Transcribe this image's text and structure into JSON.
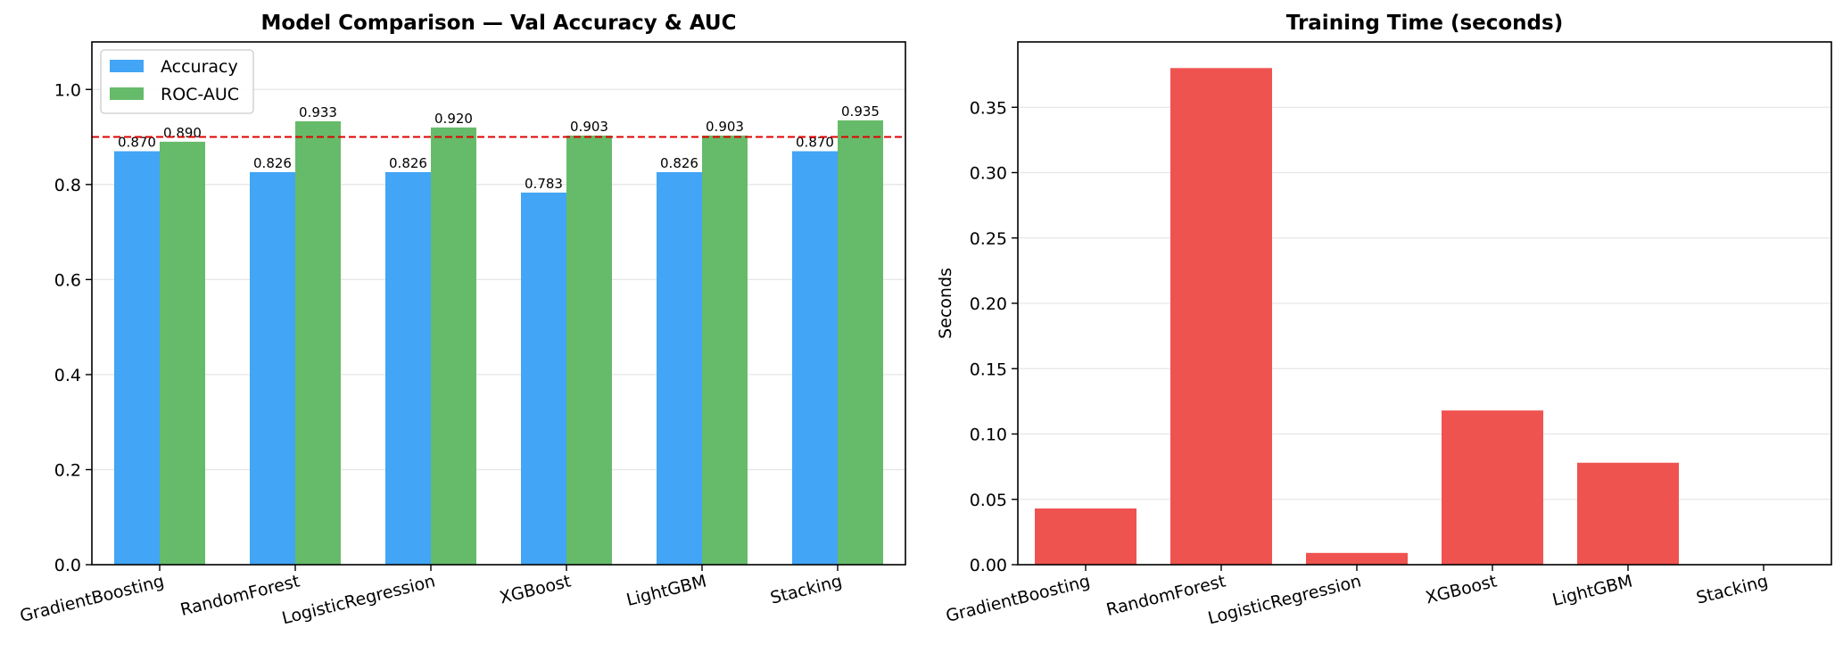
{
  "chart_data": [
    {
      "type": "bar",
      "title": "Model Comparison — Val Accuracy & AUC",
      "xlabel": "",
      "ylabel": "",
      "categories": [
        "GradientBoosting",
        "RandomForest",
        "LogisticRegression",
        "XGBoost",
        "LightGBM",
        "Stacking"
      ],
      "series": [
        {
          "name": "Accuracy",
          "color": "#42a5f5",
          "values": [
            0.87,
            0.826,
            0.826,
            0.783,
            0.826,
            0.87
          ],
          "labels": [
            "0.870",
            "0.826",
            "0.826",
            "0.783",
            "0.826",
            "0.870"
          ]
        },
        {
          "name": "ROC-AUC",
          "color": "#66bb6a",
          "values": [
            0.89,
            0.933,
            0.92,
            0.903,
            0.903,
            0.935
          ],
          "labels": [
            "0.890",
            "0.933",
            "0.920",
            "0.903",
            "0.903",
            "0.935"
          ]
        }
      ],
      "ylim": [
        0,
        1.1
      ],
      "yticks": [
        0.0,
        0.2,
        0.4,
        0.6,
        0.8,
        1.0
      ],
      "ytick_labels": [
        "0.0",
        "0.2",
        "0.4",
        "0.6",
        "0.8",
        "1.0"
      ],
      "reference_line": {
        "y": 0.9,
        "color": "#e00000",
        "style": "dashed"
      },
      "grid": "y",
      "legend": "top-left"
    },
    {
      "type": "bar",
      "title": "Training Time (seconds)",
      "xlabel": "",
      "ylabel": "Seconds",
      "categories": [
        "GradientBoosting",
        "RandomForest",
        "LogisticRegression",
        "XGBoost",
        "LightGBM",
        "Stacking"
      ],
      "values": [
        0.043,
        0.38,
        0.009,
        0.118,
        0.078,
        0.0
      ],
      "color": "#ef5350",
      "ylim": [
        0,
        0.4
      ],
      "yticks": [
        0.0,
        0.05,
        0.1,
        0.15,
        0.2,
        0.25,
        0.3,
        0.35
      ],
      "ytick_labels": [
        "0.00",
        "0.05",
        "0.10",
        "0.15",
        "0.20",
        "0.25",
        "0.30",
        "0.35"
      ],
      "grid": "y",
      "legend": "none"
    }
  ]
}
